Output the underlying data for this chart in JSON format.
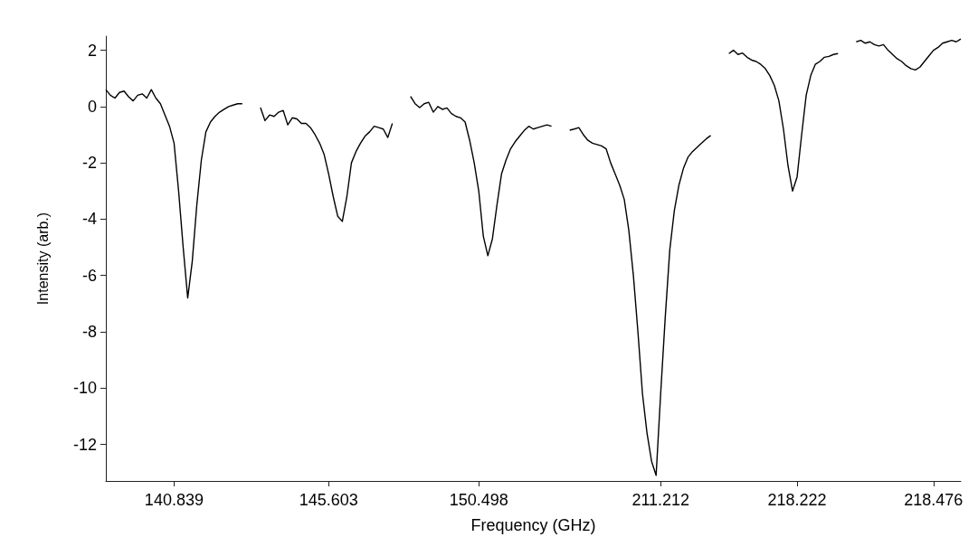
{
  "chart_data": {
    "type": "line",
    "xlabel": "Frequency (GHz)",
    "ylabel": "Intensity (arb.)",
    "ylim": [
      -13.3,
      2.5
    ],
    "yticks": [
      -12,
      -10,
      -8,
      -6,
      -4,
      -2,
      0,
      2
    ],
    "color": "#000000",
    "categories": [
      null,
      null,
      null,
      null,
      null,
      null,
      null,
      null,
      null,
      null,
      null,
      null,
      null,
      null,
      null,
      "140.839",
      null,
      null,
      null,
      null,
      null,
      null,
      null,
      null,
      null,
      null,
      null,
      null,
      null,
      null,
      null,
      null,
      null,
      null,
      null,
      null,
      null,
      null,
      null,
      null,
      null,
      null,
      null,
      null,
      null,
      null,
      null,
      null,
      null,
      "145.603",
      null,
      null,
      null,
      null,
      null,
      null,
      null,
      null,
      null,
      null,
      null,
      null,
      null,
      null,
      null,
      null,
      null,
      null,
      null,
      null,
      null,
      null,
      null,
      null,
      null,
      null,
      null,
      null,
      null,
      null,
      null,
      null,
      "150.498",
      null,
      null,
      null,
      null,
      null,
      null,
      null,
      null,
      null,
      null,
      null,
      null,
      null,
      null,
      null,
      null,
      null,
      null,
      null,
      null,
      null,
      null,
      null,
      null,
      null,
      null,
      null,
      null,
      null,
      null,
      null,
      null,
      null,
      null,
      null,
      null,
      null,
      null,
      null,
      "211.212",
      null,
      null,
      null,
      null,
      null,
      null,
      null,
      null,
      null,
      null,
      null,
      null,
      null,
      null,
      null,
      null,
      null,
      null,
      null,
      null,
      null,
      null,
      null,
      null,
      null,
      null,
      null,
      null,
      null,
      "218.222",
      null,
      null,
      null,
      null,
      null,
      null,
      null,
      null,
      null,
      null,
      null,
      null,
      null,
      null,
      null,
      null,
      null,
      null,
      null,
      null,
      null,
      null,
      null,
      null,
      null,
      null,
      null,
      null,
      null,
      "218.476",
      null,
      null,
      null,
      null,
      null,
      null
    ],
    "values": [
      0.6,
      0.4,
      0.3,
      0.5,
      0.55,
      0.35,
      0.2,
      0.4,
      0.45,
      0.3,
      0.6,
      0.3,
      0.1,
      -0.3,
      -0.7,
      -1.3,
      -3.0,
      -5.0,
      -6.8,
      -5.5,
      -3.5,
      -1.9,
      -0.9,
      -0.55,
      -0.35,
      -0.2,
      -0.1,
      0,
      0.05,
      0.1,
      0.1,
      null,
      null,
      null,
      -0.04,
      -0.5,
      -0.3,
      -0.35,
      -0.2,
      -0.14,
      -0.65,
      -0.4,
      -0.44,
      -0.6,
      -0.6,
      -0.75,
      -1.0,
      -1.3,
      -1.7,
      -2.4,
      -3.2,
      -3.9,
      -4.08,
      -3.2,
      -2.0,
      -1.6,
      -1.3,
      -1.05,
      -0.9,
      -0.7,
      -0.75,
      -0.8,
      -1.1,
      -0.6,
      null,
      null,
      null,
      0.36,
      0.1,
      -0.04,
      0.1,
      0.15,
      -0.2,
      0.0,
      -0.1,
      -0.05,
      -0.25,
      -0.35,
      -0.4,
      -0.55,
      -1.2,
      -2.0,
      -3.0,
      -4.6,
      -5.3,
      -4.7,
      -3.5,
      -2.4,
      -1.9,
      -1.5,
      -1.25,
      -1.05,
      -0.85,
      -0.7,
      -0.8,
      -0.75,
      -0.7,
      -0.65,
      -0.7,
      null,
      null,
      null,
      -0.84,
      -0.8,
      -0.75,
      -1.0,
      -1.2,
      -1.3,
      -1.35,
      -1.4,
      -1.5,
      -2.0,
      -2.4,
      -2.8,
      -3.3,
      -4.4,
      -6.0,
      -8.0,
      -10.2,
      -11.6,
      -12.6,
      -13.1,
      -10.2,
      -7.5,
      -5.1,
      -3.7,
      -2.8,
      -2.2,
      -1.8,
      -1.6,
      -1.45,
      -1.3,
      -1.15,
      -1.03,
      null,
      null,
      null,
      1.88,
      2.0,
      1.85,
      1.9,
      1.75,
      1.65,
      1.6,
      1.5,
      1.35,
      1.1,
      0.75,
      0.2,
      -0.8,
      -2.1,
      -3.0,
      -2.5,
      -1.0,
      0.4,
      1.1,
      1.5,
      1.6,
      1.75,
      1.78,
      1.85,
      1.88,
      null,
      null,
      null,
      2.3,
      2.35,
      2.25,
      2.3,
      2.2,
      2.15,
      2.2,
      2.0,
      1.85,
      1.7,
      1.6,
      1.45,
      1.35,
      1.3,
      1.4,
      1.6,
      1.8,
      2.0,
      2.1,
      2.25,
      2.3,
      2.35,
      2.3,
      2.4
    ]
  }
}
